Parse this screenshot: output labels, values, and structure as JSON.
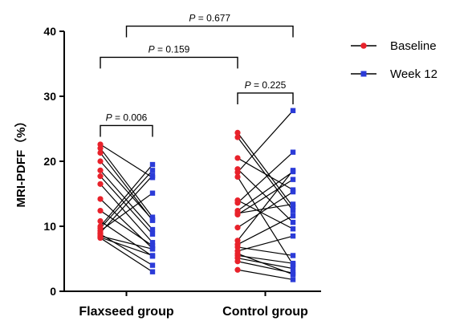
{
  "chart_data": {
    "type": "scatter",
    "subtype": "paired-before-after",
    "ylabel": "MRI-PDFF（%）",
    "ylim": [
      0,
      40
    ],
    "yticks": [
      0,
      10,
      20,
      30,
      40
    ],
    "categories": [
      "Flaxseed group",
      "Control group"
    ],
    "legend": {
      "placement": "top-right",
      "entries": [
        {
          "name": "Baseline",
          "marker": "circle",
          "color": "#e8222b"
        },
        {
          "name": "Week 12",
          "marker": "square",
          "color": "#2b3bd8"
        }
      ]
    },
    "line_color": "#000000",
    "groups": [
      {
        "name": "Flaxseed group",
        "pairs": [
          [
            22.6,
            17.5
          ],
          [
            22.0,
            11.4
          ],
          [
            21.3,
            10.9
          ],
          [
            20.0,
            11.0
          ],
          [
            18.6,
            9.5
          ],
          [
            17.7,
            8.8
          ],
          [
            16.5,
            7.5
          ],
          [
            14.2,
            6.6
          ],
          [
            12.4,
            7.0
          ],
          [
            10.8,
            5.4
          ],
          [
            10.0,
            19.5
          ],
          [
            9.7,
            18.6
          ],
          [
            9.3,
            15.1
          ],
          [
            9.0,
            17.8
          ],
          [
            8.8,
            4.0
          ],
          [
            8.5,
            6.5
          ],
          [
            8.3,
            5.5
          ],
          [
            8.2,
            3.0
          ]
        ]
      },
      {
        "name": "Control group",
        "pairs": [
          [
            24.4,
            13.0
          ],
          [
            23.7,
            12.4
          ],
          [
            20.5,
            15.6
          ],
          [
            18.8,
            10.6
          ],
          [
            18.3,
            27.8
          ],
          [
            17.6,
            4.1
          ],
          [
            14.0,
            9.6
          ],
          [
            13.6,
            21.4
          ],
          [
            12.4,
            18.4
          ],
          [
            12.0,
            13.4
          ],
          [
            11.8,
            17.2
          ],
          [
            9.8,
            15.3
          ],
          [
            7.8,
            18.6
          ],
          [
            7.2,
            11.6
          ],
          [
            6.8,
            5.5
          ],
          [
            6.2,
            8.5
          ],
          [
            5.8,
            2.6
          ],
          [
            5.5,
            4.3
          ],
          [
            5.1,
            3.5
          ],
          [
            4.6,
            2.8
          ],
          [
            3.3,
            1.8
          ]
        ]
      }
    ],
    "annotations": [
      {
        "text": "P = 0.006",
        "between": [
          0,
          0
        ],
        "y": 25.5
      },
      {
        "text": "P = 0.225",
        "between": [
          1,
          1
        ],
        "y": 30.5
      },
      {
        "text": "P = 0.159",
        "between": [
          0,
          1
        ],
        "y": 36.0
      },
      {
        "text": "P = 0.677",
        "between": [
          0,
          1
        ],
        "y": 40.8
      }
    ]
  }
}
